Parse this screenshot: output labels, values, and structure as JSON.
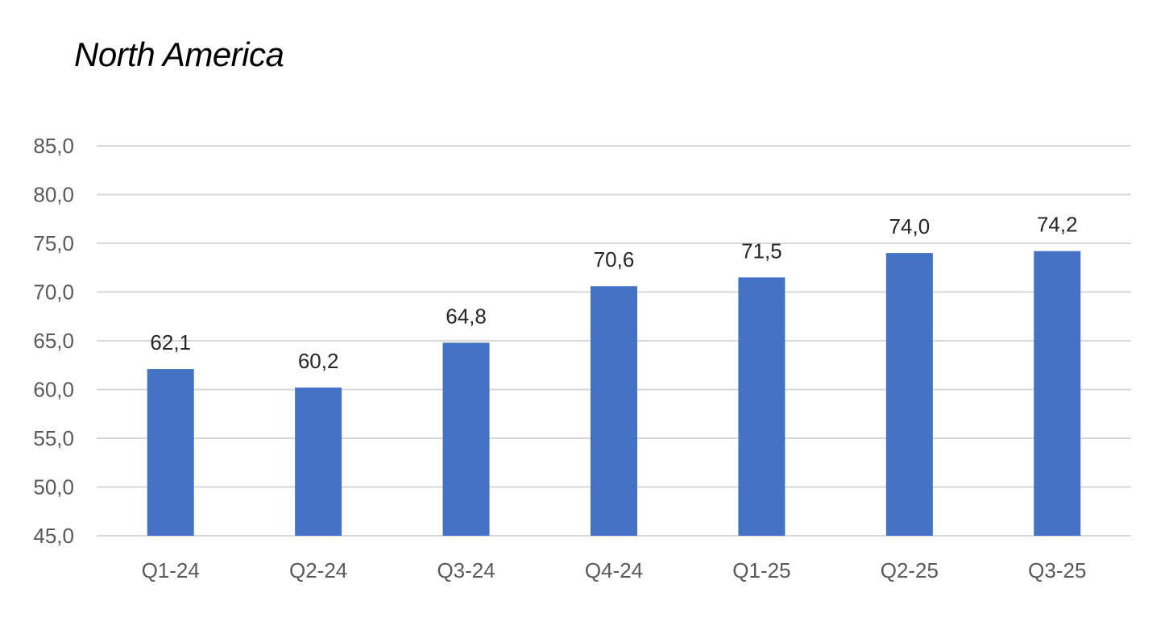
{
  "chart_data": {
    "type": "bar",
    "title": "North America",
    "categories": [
      "Q1-24",
      "Q2-24",
      "Q3-24",
      "Q4-24",
      "Q1-25",
      "Q2-25",
      "Q3-25"
    ],
    "values": [
      62.1,
      60.2,
      64.8,
      70.6,
      71.5,
      74.0,
      74.2
    ],
    "data_labels": [
      "62,1",
      "60,2",
      "64,8",
      "70,6",
      "71,5",
      "74,0",
      "74,2"
    ],
    "ylim": [
      45,
      85
    ],
    "yticks": [
      45,
      50,
      55,
      60,
      65,
      70,
      75,
      80,
      85
    ],
    "ytick_labels": [
      "45,0",
      "50,0",
      "55,0",
      "60,0",
      "65,0",
      "70,0",
      "75,0",
      "80,0",
      "85,0"
    ],
    "xlabel": "",
    "ylabel": "",
    "grid": true,
    "legend": "none",
    "bar_color": "#4472C4"
  }
}
